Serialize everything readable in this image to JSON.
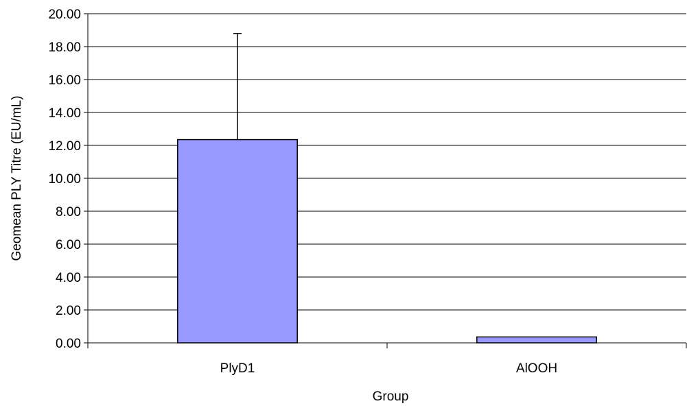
{
  "chart_data": {
    "type": "bar",
    "title": "",
    "xlabel": "Group",
    "ylabel": "Geomean PLY Titre (EU/mL)",
    "categories": [
      "PlyD1",
      "AlOOH"
    ],
    "values": [
      12.35,
      0.36
    ],
    "error_bars_upper": [
      18.8,
      null
    ],
    "ylim": [
      0,
      20
    ],
    "y_ticks": [
      "0.00",
      "2.00",
      "4.00",
      "6.00",
      "8.00",
      "10.00",
      "12.00",
      "14.00",
      "16.00",
      "18.00",
      "20.00"
    ],
    "grid": true,
    "legend": "none",
    "bar_color": "#9999ff",
    "bar_edge_color": "#000000"
  }
}
